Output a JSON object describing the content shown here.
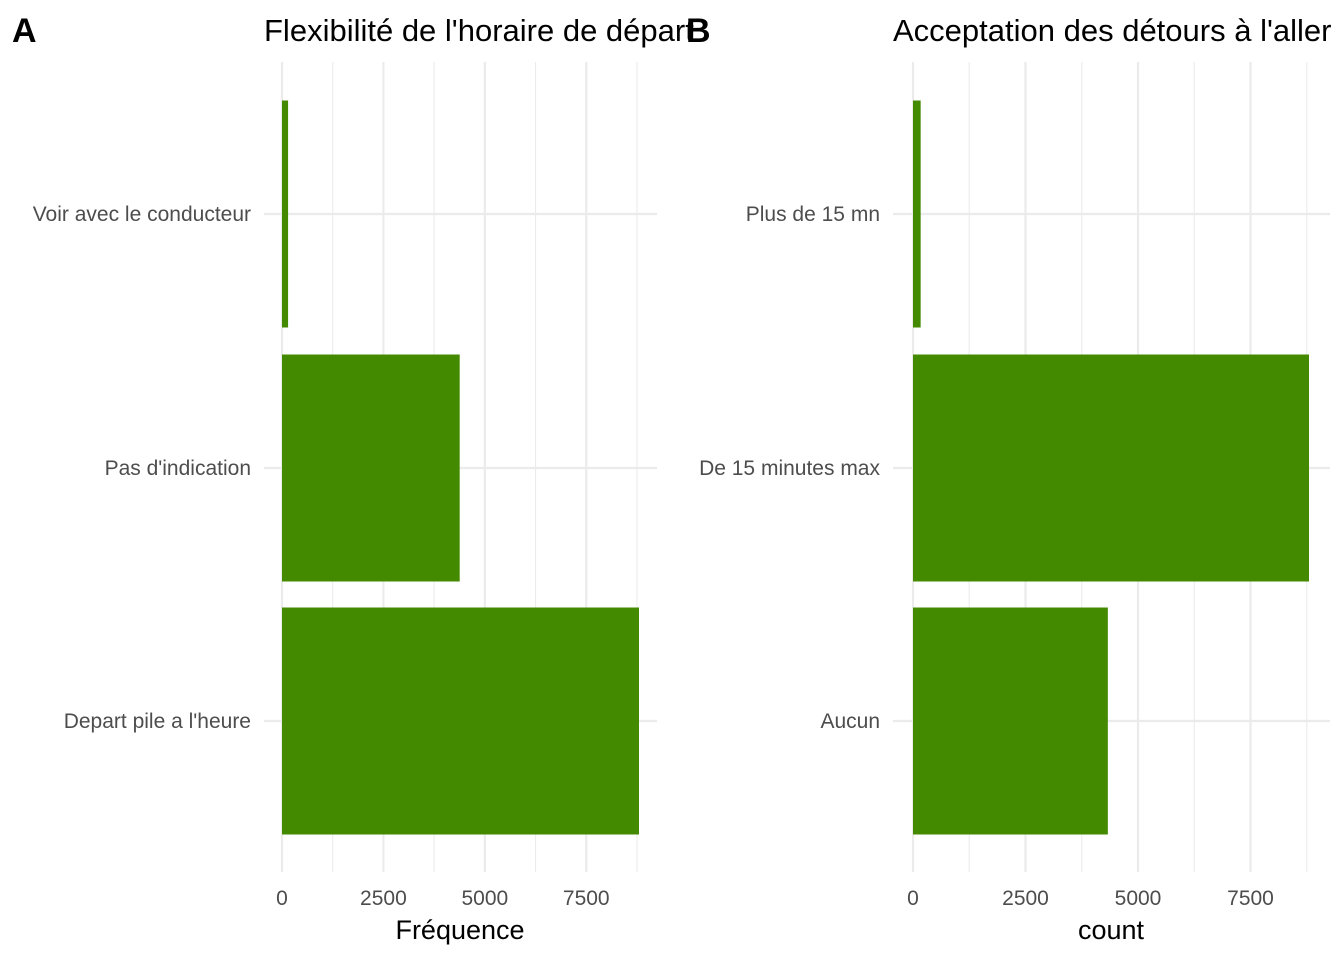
{
  "chart_data": [
    {
      "type": "bar",
      "orientation": "horizontal",
      "tag": "A",
      "title": "Flexibilité de l'horaire de départ",
      "xlabel": "Fréquence",
      "ylabel": "",
      "categories": [
        "Depart pile a l'heure",
        "Pas d'indication",
        "Voir avec le conducteur"
      ],
      "values": [
        8800,
        4380,
        150
      ],
      "xlim": [
        0,
        9200
      ],
      "ticks": [
        0,
        2500,
        5000,
        7500
      ],
      "tick_labels": [
        "0",
        "2500",
        "5000",
        "7500"
      ],
      "color": "#448a00",
      "grid": true
    },
    {
      "type": "bar",
      "orientation": "horizontal",
      "tag": "B",
      "title": "Acceptation des détours à l'aller",
      "xlabel": "count",
      "ylabel": "",
      "categories": [
        "Aucun",
        "De 15 minutes max",
        "Plus de 15 mn"
      ],
      "values": [
        4330,
        8800,
        170
      ],
      "xlim": [
        0,
        9200
      ],
      "ticks": [
        0,
        2500,
        5000,
        7500
      ],
      "tick_labels": [
        "0",
        "2500",
        "5000",
        "7500"
      ],
      "color": "#448a00",
      "grid": true
    }
  ]
}
